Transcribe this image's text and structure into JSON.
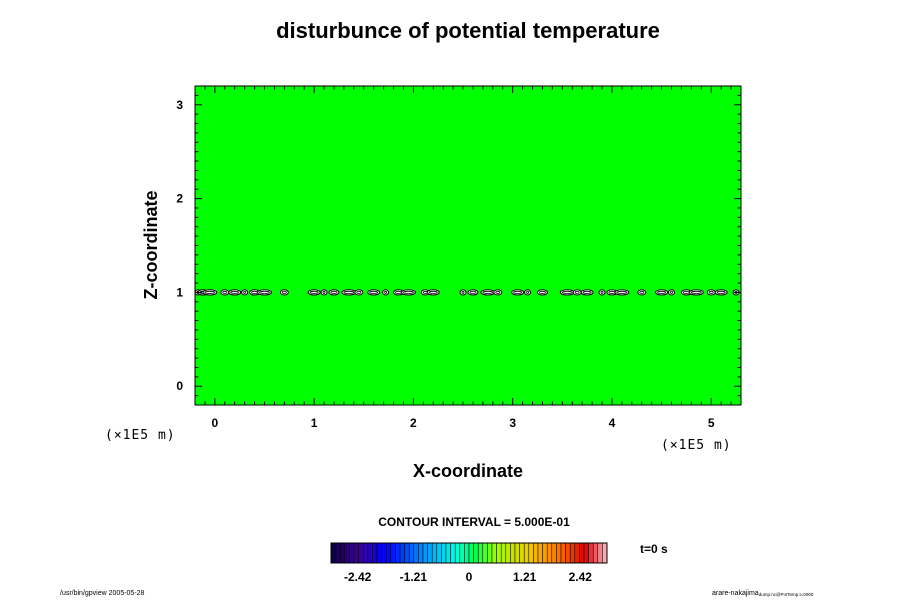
{
  "chart_data": {
    "type": "heatmap",
    "title": "disturbunce of potential temperature",
    "xlabel": "X-coordinate",
    "ylabel": "Z-coordinate",
    "x_unit": "(×1E5 m)",
    "y_unit": "(×1E5 m)",
    "xlim": [
      -0.2,
      5.3
    ],
    "ylim": [
      -0.2,
      3.2
    ],
    "x_ticks": [
      0,
      1,
      2,
      3,
      4,
      5
    ],
    "y_ticks": [
      0,
      1,
      2,
      3
    ],
    "x_tick_labels": [
      "0",
      "1",
      "2",
      "3",
      "4",
      "5"
    ],
    "y_tick_labels": [
      "0",
      "1",
      "2",
      "3"
    ],
    "field_value": 0,
    "field_color": "#00ff00",
    "disturbance_layer_z": 1.0,
    "disturbance_x": [
      -0.17,
      -0.12,
      -0.05,
      0.1,
      0.2,
      0.3,
      0.4,
      0.5,
      0.7,
      1.0,
      1.1,
      1.2,
      1.35,
      1.45,
      1.6,
      1.72,
      1.85,
      1.95,
      2.12,
      2.2,
      2.5,
      2.6,
      2.75,
      2.85,
      3.05,
      3.15,
      3.3,
      3.55,
      3.65,
      3.75,
      3.9,
      4.0,
      4.1,
      4.3,
      4.5,
      4.6,
      4.75,
      4.85,
      5.0,
      5.1,
      5.25
    ],
    "contour_interval": "CONTOUR INTERVAL = 5.000E-01",
    "time_label": "t=0 s",
    "colorbar_ticks": [
      "-2.42",
      "-1.21",
      "0",
      "1.21",
      "2.42"
    ],
    "colorbar_tick_values": [
      -2.42,
      -1.21,
      0,
      1.21,
      2.42
    ],
    "colorbar_range": [
      -3.0,
      3.0
    ],
    "footer_left": "/usr/bin/gpview 2005-05-28",
    "footer_right_main": "arare-nakajima",
    "footer_right_sub": "dump.nc@PotTemp,t=0000"
  }
}
